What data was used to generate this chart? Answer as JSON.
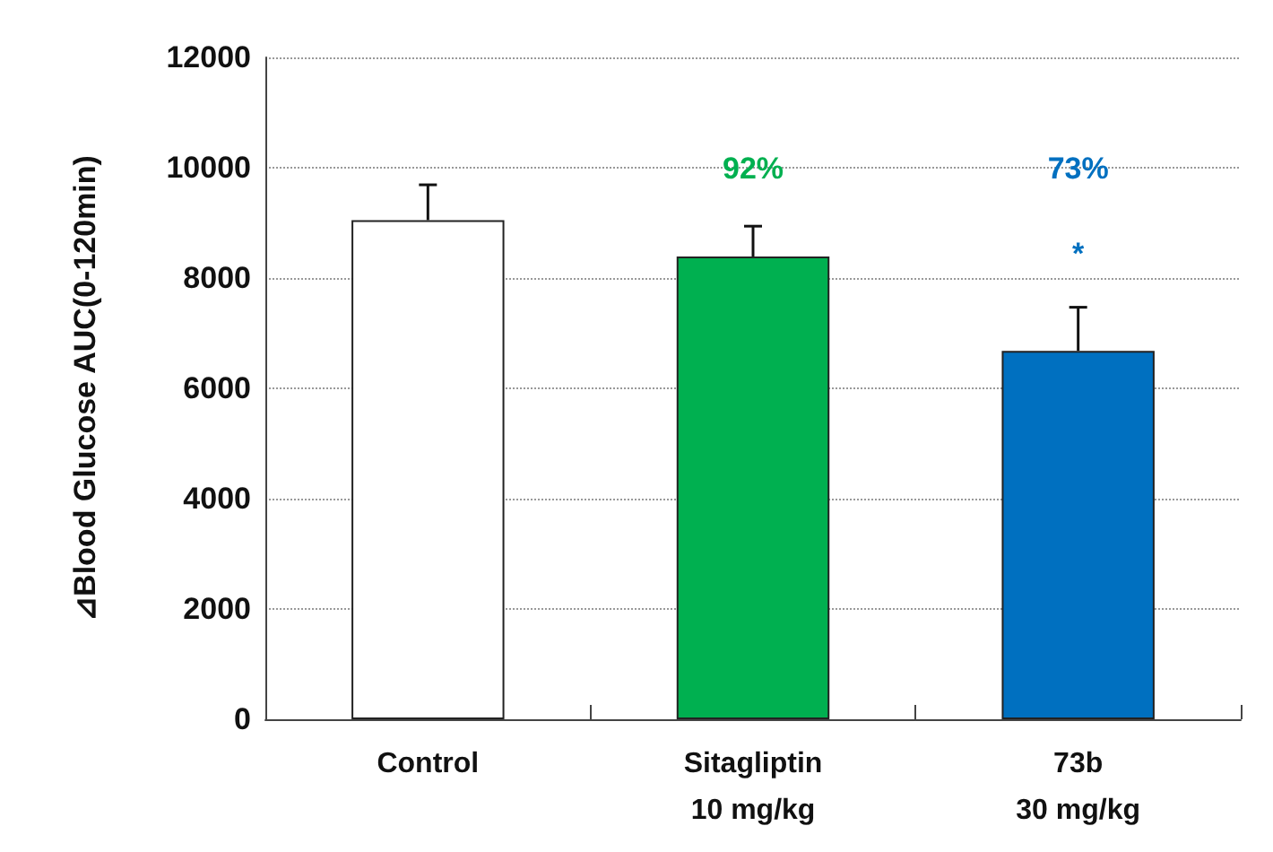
{
  "chart_data": {
    "type": "bar",
    "ylabel": "⊿Blood Glucose AUC(0-120min)",
    "categories": [
      "Control",
      "Sitagliptin\n10 mg/kg",
      "73b\n30 mg/kg"
    ],
    "values": [
      9050,
      8390,
      6680
    ],
    "colors": [
      "#ffffff",
      "#00b050",
      "#0070c0"
    ],
    "errors": [
      [
        9050,
        9690
      ],
      [
        8390,
        8940
      ],
      [
        6680,
        7470
      ]
    ],
    "ylim": [
      0,
      12000
    ],
    "yticks": [
      0,
      2000,
      4000,
      6000,
      8000,
      10000,
      12000
    ],
    "grid": "y",
    "annotations": [
      "92%",
      "73%",
      "*"
    ]
  }
}
